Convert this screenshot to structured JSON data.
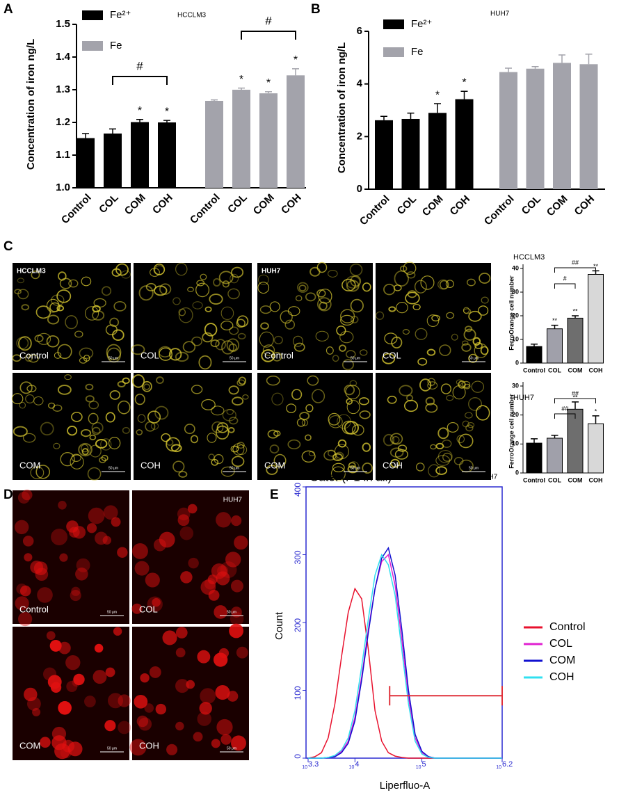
{
  "panels": [
    "A",
    "B",
    "C",
    "D",
    "E"
  ],
  "chart_data": [
    {
      "type": "bar",
      "note": "HCCLM3",
      "ylabel": "Concentration of iron  ng/L",
      "categories": [
        "Control",
        "COL",
        "COM",
        "COH"
      ],
      "series": [
        {
          "name": "Fe²⁺",
          "color": "#000000",
          "values": [
            1.152,
            1.166,
            1.201,
            1.2
          ],
          "errors": [
            0.014,
            0.014,
            0.008,
            0.006
          ],
          "stars": [
            null,
            null,
            "*",
            "*"
          ]
        },
        {
          "name": "Fe",
          "color": "#a3a3ab",
          "values": [
            1.266,
            1.3,
            1.289,
            1.344
          ],
          "errors": [
            0.003,
            0.005,
            0.005,
            0.02
          ],
          "stars": [
            null,
            "*",
            "*",
            "*"
          ]
        }
      ],
      "brackets": [
        {
          "series": 0,
          "from": 1,
          "to": 3,
          "text": "#"
        },
        {
          "series": 1,
          "from": 1,
          "to": 3,
          "text": "#"
        }
      ],
      "ylim": [
        1,
        1.5
      ],
      "yticks": [
        {
          "value": 1,
          "label": "1.0"
        },
        1.1,
        1.2,
        1.3,
        1.4,
        1.5
      ]
    },
    {
      "type": "bar",
      "note": "HUH7",
      "ylabel": "Concentration of iron  ng/L",
      "categories": [
        "Control",
        "COL",
        "COM",
        "COH"
      ],
      "series": [
        {
          "name": "Fe²⁺",
          "color": "#000000",
          "values": [
            2.62,
            2.67,
            2.9,
            3.42
          ],
          "errors": [
            0.15,
            0.22,
            0.35,
            0.3
          ],
          "stars": [
            null,
            null,
            "*",
            "*"
          ]
        },
        {
          "name": "Fe",
          "color": "#a3a3ab",
          "values": [
            4.45,
            4.58,
            4.8,
            4.75
          ],
          "errors": [
            0.15,
            0.08,
            0.3,
            0.38
          ],
          "stars": [
            null,
            null,
            null,
            null
          ]
        }
      ],
      "brackets": [],
      "ylim": [
        0,
        6
      ],
      "yticks": [
        0,
        2,
        4,
        6
      ]
    },
    {
      "type": "bar",
      "title": "HCCLM3",
      "ylabel": "FerroOrange cell number",
      "categories": [
        "Control",
        "COL",
        "COM",
        "COH"
      ],
      "values": [
        7,
        14.5,
        19,
        37.5
      ],
      "errors": [
        1,
        1.5,
        1,
        1.5
      ],
      "stars": [
        null,
        "**",
        "**",
        "**"
      ],
      "colors": [
        "#000000",
        "#a0a0aa",
        "#6e6e6e",
        "#d8d8d8"
      ],
      "brackets": [
        {
          "from": 1,
          "to": 2,
          "text": "#"
        },
        {
          "from": 1,
          "to": 3,
          "text": "##"
        }
      ],
      "ylim": [
        0,
        40
      ],
      "yticks": [
        0,
        10,
        20,
        30,
        40
      ]
    },
    {
      "type": "bar",
      "title": "HUH7",
      "ylabel": "FerroOrange cell number",
      "categories": [
        "Control",
        "COL",
        "COM",
        "COH"
      ],
      "values": [
        10.3,
        12,
        22,
        17
      ],
      "errors": [
        1.5,
        1,
        2.5,
        2.7
      ],
      "stars": [
        null,
        null,
        "**",
        "*"
      ],
      "colors": [
        "#000000",
        "#a0a0aa",
        "#6e6e6e",
        "#d8d8d8"
      ],
      "brackets": [
        {
          "from": 1,
          "to": 2,
          "text": "##"
        },
        {
          "from": 1,
          "to": 3,
          "text": "##"
        }
      ],
      "ylim": [
        0,
        30
      ],
      "yticks": [
        0,
        10,
        20,
        30
      ]
    },
    {
      "type": "line",
      "title": "Gate: (P1 in all)",
      "note": "HUH7",
      "xlabel": "Liperfluo-A",
      "ylabel": "Count",
      "xscale": "log",
      "legend": "right",
      "x": [
        1995.26,
        2511.89,
        3162.28,
        3981.07,
        5011.87,
        6309.57,
        7943.28,
        10000,
        12589.25,
        15848.93,
        19952.62,
        25118.86,
        31622.78,
        39810.72,
        50118.72,
        63095.73,
        79432.82,
        100000,
        125892.54,
        158489.32,
        199526.23,
        251188.64,
        316227.77,
        398107.17,
        501187.23,
        630957.34,
        794328.23,
        1000000,
        1258925.41,
        1584893.19
      ],
      "series": [
        {
          "name": "Control",
          "color": "#e8112d",
          "values": [
            0,
            2,
            8,
            30,
            80,
            150,
            215,
            250,
            235,
            160,
            70,
            25,
            8,
            3,
            1,
            0,
            0,
            0,
            0,
            0,
            0,
            0,
            0,
            0,
            0,
            0,
            0,
            0,
            0,
            0
          ]
        },
        {
          "name": "COL",
          "color": "#e020d0",
          "values": [
            0,
            0,
            0,
            1,
            3,
            10,
            25,
            60,
            120,
            190,
            250,
            290,
            300,
            255,
            175,
            90,
            30,
            8,
            2,
            0,
            0,
            0,
            0,
            0,
            0,
            0,
            0,
            0,
            0,
            0
          ]
        },
        {
          "name": "COM",
          "color": "#1010d0",
          "values": [
            0,
            0,
            0,
            1,
            2,
            8,
            22,
            55,
            115,
            185,
            250,
            295,
            310,
            270,
            190,
            100,
            35,
            10,
            2,
            0,
            0,
            0,
            0,
            0,
            0,
            0,
            0,
            0,
            0,
            0
          ]
        },
        {
          "name": "COH",
          "color": "#30e0f0",
          "values": [
            0,
            0,
            0,
            1,
            4,
            12,
            30,
            70,
            135,
            205,
            270,
            300,
            285,
            240,
            160,
            80,
            25,
            6,
            1,
            0,
            0,
            0,
            0,
            0,
            0,
            0,
            0,
            0,
            0,
            0
          ]
        }
      ],
      "gate": {
        "x": [
          33000,
          1584893.19
        ],
        "y": 92
      },
      "xlim": [
        1995.26,
        1584893.19
      ],
      "xtick_base": "10",
      "xticks": [
        {
          "value": 1995.26,
          "label": "3.3"
        },
        {
          "value": 10000,
          "label": "4"
        },
        {
          "value": 100000,
          "label": "5"
        },
        {
          "value": 1584893.19,
          "label": "6.2"
        }
      ],
      "ylim": [
        0,
        400
      ],
      "yticks": [
        0,
        100,
        200,
        300,
        400
      ]
    }
  ],
  "micrographs": [
    {
      "title": "HCCLM3",
      "labels": [
        "Control",
        "COL",
        "COM",
        "COH"
      ],
      "scale": "50 μm"
    },
    {
      "title": "HUH7",
      "labels": [
        "Control",
        "COL",
        "COM",
        "COH"
      ],
      "scale": "50 μm"
    },
    {
      "title": "HUH7",
      "labels": [
        "Control",
        "COL",
        "COM",
        "COH"
      ],
      "scale": "50 μm"
    }
  ]
}
